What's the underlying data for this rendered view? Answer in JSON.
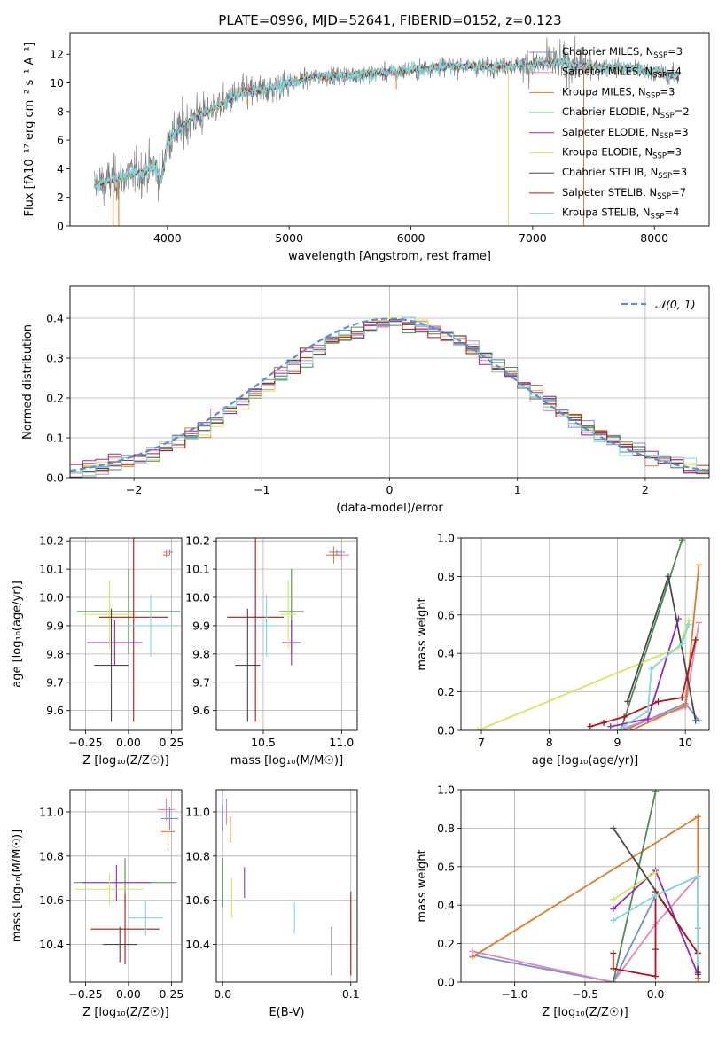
{
  "figure_title": "PLATE=0996, MJD=52641, FIBERID=0152, z=0.123",
  "colors": {
    "Chabrier MILES": "#6f8fdc",
    "Salpeter MILES": "#e884b6",
    "Kroupa MILES": "#e07b2a",
    "Chabrier ELODIE": "#4f8a57",
    "Salpeter ELODIE": "#9527c6",
    "Kroupa ELODIE": "#d4e85c",
    "Chabrier STELIB": "#4a4a4a",
    "Salpeter STELIB": "#b01818",
    "Kroupa STELIB": "#7fd9dd",
    "data": "#7f7f7f",
    "normal": "#5a8fd6"
  },
  "legend": {
    "models": [
      {
        "name": "Chabrier MILES",
        "lib": "MILES",
        "n": "3"
      },
      {
        "name": "Salpeter MILES",
        "lib": "MILES",
        "n": "4"
      },
      {
        "name": "Kroupa MILES",
        "lib": "MILES",
        "n": "3"
      },
      {
        "name": "Chabrier ELODIE",
        "lib": "ELODIE",
        "n": "2"
      },
      {
        "name": "Salpeter ELODIE",
        "lib": "ELODIE",
        "n": "3"
      },
      {
        "name": "Kroupa ELODIE",
        "lib": "ELODIE",
        "n": "3"
      },
      {
        "name": "Chabrier STELIB",
        "lib": "STELIB",
        "n": "3"
      },
      {
        "name": "Salpeter STELIB",
        "lib": "STELIB",
        "n": "7"
      },
      {
        "name": "Kroupa STELIB",
        "lib": "STELIB",
        "n": "4"
      }
    ],
    "nssp_prefix": "N",
    "nssp_sub": "SSP",
    "normal_label": "𝒩(0, 1)"
  },
  "chart_data": [
    {
      "id": "spectrum",
      "type": "line",
      "xlabel": "wavelength [Angstrom, rest frame]",
      "ylabel": "Flux [fλ10⁻¹⁷ erg cm⁻² s⁻¹ A⁻¹]",
      "xlim": [
        3200,
        8450
      ],
      "ylim": [
        0,
        13.5
      ],
      "xticks": [
        4000,
        5000,
        6000,
        7000,
        8000
      ],
      "yticks": [
        0,
        2,
        4,
        6,
        8,
        10,
        12
      ],
      "grid": false,
      "continuum_x": [
        3400,
        3550,
        3700,
        3800,
        3900,
        3950,
        4000,
        4200,
        4400,
        4600,
        4800,
        5000,
        5200,
        5400,
        5600,
        5800,
        6000,
        6200,
        6400,
        6600,
        6800,
        7000,
        7200,
        7400,
        7600,
        7800,
        8000,
        8200
      ],
      "continuum_y": [
        2.8,
        3.2,
        3.6,
        3.8,
        4.2,
        3.2,
        6.0,
        7.5,
        8.3,
        9.3,
        9.5,
        10.0,
        10.4,
        10.5,
        10.6,
        10.7,
        10.9,
        11.1,
        11.2,
        11.1,
        11.2,
        11.3,
        11.4,
        11.2,
        11.1,
        11.0,
        10.8,
        10.4
      ]
    },
    {
      "id": "residuals",
      "type": "histogram",
      "xlabel": "(data-model)/error",
      "ylabel": "Normed distribution",
      "xlim": [
        -2.5,
        2.5
      ],
      "ylim": [
        0,
        0.48
      ],
      "xticks": [
        -2,
        -1,
        0,
        1,
        2
      ],
      "yticks": [
        0.0,
        0.1,
        0.2,
        0.3,
        0.4
      ],
      "grid": true,
      "legend_position": "upper right",
      "bin_width": 0.1,
      "bin_start": -2.5,
      "series": "normal distribution N(0,1) plus 9 model histograms"
    },
    {
      "id": "age_vs_Z",
      "type": "scatter",
      "xlabel": "Z [log₁₀(Z/Z☉)]",
      "ylabel": "age  [log₁₀(age/yr)]",
      "xlim": [
        -0.34,
        0.31
      ],
      "ylim": [
        9.53,
        10.21
      ],
      "xticks": [
        -0.25,
        0.0,
        0.25
      ],
      "yticks": [
        9.6,
        9.7,
        9.8,
        9.9,
        10.0,
        10.1,
        10.2
      ],
      "grid": true,
      "points": [
        {
          "model": "Chabrier MILES",
          "x": 0.24,
          "y": 10.16,
          "xerr": 0.02,
          "yerr": 0.01
        },
        {
          "model": "Salpeter MILES",
          "x": 0.22,
          "y": 10.16,
          "xerr": 0.02,
          "yerr": 0.01
        },
        {
          "model": "Kroupa MILES",
          "x": 0.22,
          "y": 10.15,
          "xerr": 0.02,
          "yerr": 0.01
        },
        {
          "model": "Chabrier ELODIE",
          "x": 0.0,
          "y": 9.95,
          "xerr": 0.3,
          "yerr": 0.15
        },
        {
          "model": "Salpeter ELODIE",
          "x": -0.08,
          "y": 9.84,
          "xerr": 0.16,
          "yerr": 0.08
        },
        {
          "model": "Kroupa ELODIE",
          "x": -0.11,
          "y": 9.94,
          "xerr": 0.15,
          "yerr": 0.12
        },
        {
          "model": "Chabrier STELIB",
          "x": -0.1,
          "y": 9.76,
          "xerr": 0.1,
          "yerr": 0.2
        },
        {
          "model": "Salpeter STELIB",
          "x": 0.03,
          "y": 9.93,
          "xerr": 0.2,
          "yerr": 0.37
        },
        {
          "model": "Kroupa STELIB",
          "x": 0.13,
          "y": 9.9,
          "xerr": 0.15,
          "yerr": 0.11
        }
      ]
    },
    {
      "id": "age_vs_mass",
      "type": "scatter",
      "xlabel": "mass [log₁₀(M/M☉)]",
      "ylabel": "",
      "xlim": [
        10.2,
        11.1
      ],
      "ylim": [
        9.53,
        10.21
      ],
      "xticks": [
        10.5,
        11.0
      ],
      "yticks": [
        9.6,
        9.7,
        9.8,
        9.9,
        10.0,
        10.1,
        10.2
      ],
      "grid": true,
      "points": [
        {
          "model": "Chabrier MILES",
          "x": 10.97,
          "y": 10.16,
          "xerr": 0.05,
          "yerr": 0.01
        },
        {
          "model": "Salpeter MILES",
          "x": 11.0,
          "y": 10.15,
          "xerr": 0.05,
          "yerr": 0.02
        },
        {
          "model": "Kroupa MILES",
          "x": 10.95,
          "y": 10.15,
          "xerr": 0.05,
          "yerr": 0.03
        },
        {
          "model": "Chabrier ELODIE",
          "x": 10.68,
          "y": 9.95,
          "xerr": 0.08,
          "yerr": 0.15
        },
        {
          "model": "Salpeter ELODIE",
          "x": 10.68,
          "y": 9.84,
          "xerr": 0.06,
          "yerr": 0.08
        },
        {
          "model": "Kroupa ELODIE",
          "x": 10.66,
          "y": 9.94,
          "xerr": 0.05,
          "yerr": 0.12
        },
        {
          "model": "Chabrier STELIB",
          "x": 10.4,
          "y": 9.76,
          "xerr": 0.08,
          "yerr": 0.2
        },
        {
          "model": "Salpeter STELIB",
          "x": 10.45,
          "y": 9.93,
          "xerr": 0.18,
          "yerr": 0.37
        },
        {
          "model": "Kroupa STELIB",
          "x": 10.52,
          "y": 9.9,
          "xerr": 0.06,
          "yerr": 0.11
        }
      ]
    },
    {
      "id": "weight_vs_age",
      "type": "line",
      "xlabel": "age  [log₁₀(age/yr)]",
      "ylabel": "mass weight",
      "xlim": [
        6.7,
        10.35
      ],
      "ylim": [
        0,
        1.0
      ],
      "xticks": [
        7,
        8,
        9,
        10
      ],
      "yticks": [
        0.0,
        0.2,
        0.4,
        0.6,
        0.8,
        1.0
      ],
      "grid": true,
      "series": [
        {
          "model": "Chabrier MILES",
          "x": [
            9.1,
            10.0,
            10.2
          ],
          "y": [
            0.0,
            0.14,
            0.05
          ]
        },
        {
          "model": "Salpeter MILES",
          "x": [
            9.0,
            10.0,
            10.2
          ],
          "y": [
            0.0,
            0.12,
            0.56
          ]
        },
        {
          "model": "Kroupa MILES",
          "x": [
            9.2,
            10.0,
            10.2
          ],
          "y": [
            0.0,
            0.13,
            0.86
          ]
        },
        {
          "model": "Chabrier ELODIE",
          "x": [
            9.05,
            9.95
          ],
          "y": [
            0.0,
            0.99
          ]
        },
        {
          "model": "Salpeter ELODIE",
          "x": [
            8.9,
            9.45,
            9.9
          ],
          "y": [
            0.02,
            0.06,
            0.58
          ]
        },
        {
          "model": "Kroupa ELODIE",
          "x": [
            6.95,
            9.9,
            10.05
          ],
          "y": [
            0.0,
            0.43,
            0.57
          ]
        },
        {
          "model": "Chabrier STELIB",
          "x": [
            9.15,
            9.75,
            10.15
          ],
          "y": [
            0.15,
            0.8,
            0.05
          ]
        },
        {
          "model": "Salpeter STELIB",
          "x": [
            8.6,
            8.8,
            9.1,
            9.6,
            9.95,
            10.15
          ],
          "y": [
            0.02,
            0.04,
            0.07,
            0.15,
            0.17,
            0.47
          ]
        },
        {
          "model": "Kroupa STELIB",
          "x": [
            9.0,
            9.45,
            9.5,
            9.95,
            10.05
          ],
          "y": [
            0.0,
            0.1,
            0.32,
            0.45,
            0.55
          ]
        }
      ]
    },
    {
      "id": "mass_vs_Z",
      "type": "scatter",
      "xlabel": "Z [log₁₀(Z/Z☉)]",
      "ylabel": "mass [log₁₀(M/M☉)]",
      "xlim": [
        -0.34,
        0.31
      ],
      "ylim": [
        10.23,
        11.1
      ],
      "xticks": [
        -0.25,
        0.0,
        0.25
      ],
      "yticks": [
        10.4,
        10.6,
        10.8,
        11.0
      ],
      "grid": true,
      "points": [
        {
          "model": "Chabrier MILES",
          "x": 0.24,
          "y": 10.97,
          "xerr": 0.05,
          "yerr": 0.05
        },
        {
          "model": "Salpeter MILES",
          "x": 0.22,
          "y": 11.01,
          "xerr": 0.05,
          "yerr": 0.05
        },
        {
          "model": "Kroupa MILES",
          "x": 0.23,
          "y": 10.91,
          "xerr": 0.04,
          "yerr": 0.06
        },
        {
          "model": "Chabrier ELODIE",
          "x": -0.02,
          "y": 10.68,
          "xerr": 0.3,
          "yerr": 0.11
        },
        {
          "model": "Salpeter ELODIE",
          "x": -0.07,
          "y": 10.68,
          "xerr": 0.2,
          "yerr": 0.08
        },
        {
          "model": "Kroupa ELODIE",
          "x": -0.11,
          "y": 10.65,
          "xerr": 0.2,
          "yerr": 0.07
        },
        {
          "model": "Chabrier STELIB",
          "x": -0.05,
          "y": 10.4,
          "xerr": 0.1,
          "yerr": 0.08
        },
        {
          "model": "Salpeter STELIB",
          "x": -0.02,
          "y": 10.47,
          "xerr": 0.2,
          "yerr": 0.16
        },
        {
          "model": "Kroupa STELIB",
          "x": 0.1,
          "y": 10.52,
          "xerr": 0.1,
          "yerr": 0.08
        }
      ]
    },
    {
      "id": "mass_vs_ebv",
      "type": "scatter",
      "xlabel": "E(B-V)",
      "ylabel": "",
      "xlim": [
        -0.005,
        0.105
      ],
      "ylim": [
        10.23,
        11.1
      ],
      "xticks": [
        0.0,
        0.1
      ],
      "yticks": [
        10.4,
        10.6,
        10.8,
        11.0
      ],
      "grid": true,
      "points": [
        {
          "model": "Chabrier MILES",
          "x": 0.0,
          "y": 10.97,
          "xerr": 0,
          "yerr": 0.06
        },
        {
          "model": "Salpeter MILES",
          "x": 0.003,
          "y": 11.0,
          "xerr": 0,
          "yerr": 0.06
        },
        {
          "model": "Kroupa MILES",
          "x": 0.006,
          "y": 10.92,
          "xerr": 0,
          "yerr": 0.06
        },
        {
          "model": "Chabrier ELODIE",
          "x": 0.0,
          "y": 10.68,
          "xerr": 0,
          "yerr": 0.11
        },
        {
          "model": "Salpeter ELODIE",
          "x": 0.017,
          "y": 10.68,
          "xerr": 0,
          "yerr": 0.07
        },
        {
          "model": "Kroupa ELODIE",
          "x": 0.007,
          "y": 10.61,
          "xerr": 0,
          "yerr": 0.09
        },
        {
          "model": "Chabrier STELIB",
          "x": 0.085,
          "y": 10.37,
          "xerr": 0,
          "yerr": 0.11
        },
        {
          "model": "Salpeter STELIB",
          "x": 0.1,
          "y": 10.45,
          "xerr": 0,
          "yerr": 0.19
        },
        {
          "model": "Kroupa STELIB",
          "x": 0.056,
          "y": 10.52,
          "xerr": 0,
          "yerr": 0.07
        }
      ]
    },
    {
      "id": "weight_vs_Z",
      "type": "line",
      "xlabel": "Z [log₁₀(Z/Z☉)]",
      "ylabel": "mass weight",
      "xlim": [
        -1.38,
        0.38
      ],
      "ylim": [
        0,
        1.0
      ],
      "xticks": [
        -1.0,
        -0.5,
        0.0
      ],
      "yticks": [
        0.0,
        0.2,
        0.4,
        0.6,
        0.8,
        1.0
      ],
      "grid": true,
      "series": [
        {
          "model": "Chabrier MILES",
          "x": [
            -1.3,
            -0.3,
            0.0,
            0.3,
            0.3
          ],
          "y": [
            0.14,
            0.0,
            0.45,
            0.55,
            0.05
          ]
        },
        {
          "model": "Salpeter MILES",
          "x": [
            -1.3,
            -0.3,
            0.0,
            0.3,
            0.3
          ],
          "y": [
            0.16,
            0.0,
            0.3,
            0.55,
            0.28
          ]
        },
        {
          "model": "Kroupa MILES",
          "x": [
            -1.3,
            0.3,
            0.3
          ],
          "y": [
            0.13,
            0.86,
            0.02
          ]
        },
        {
          "model": "Chabrier ELODIE",
          "x": [
            -0.3,
            0.0
          ],
          "y": [
            0.0,
            0.99
          ]
        },
        {
          "model": "Salpeter ELODIE",
          "x": [
            -0.3,
            0.0,
            0.3
          ],
          "y": [
            0.38,
            0.58,
            0.04
          ]
        },
        {
          "model": "Kroupa ELODIE",
          "x": [
            -0.3,
            0.0
          ],
          "y": [
            0.43,
            0.57
          ]
        },
        {
          "model": "Chabrier STELIB",
          "x": [
            -0.3,
            0.3,
            0.3
          ],
          "y": [
            0.8,
            0.15,
            0.05
          ]
        },
        {
          "model": "Salpeter STELIB",
          "x": [
            -0.3,
            -0.3,
            0.0,
            0.0,
            0.0,
            0.3
          ],
          "y": [
            0.15,
            0.07,
            0.03,
            0.17,
            0.47,
            0.15
          ]
        },
        {
          "model": "Kroupa STELIB",
          "x": [
            -0.3,
            0.0,
            0.3,
            0.3
          ],
          "y": [
            0.32,
            0.45,
            0.55,
            0.1
          ]
        }
      ]
    }
  ]
}
